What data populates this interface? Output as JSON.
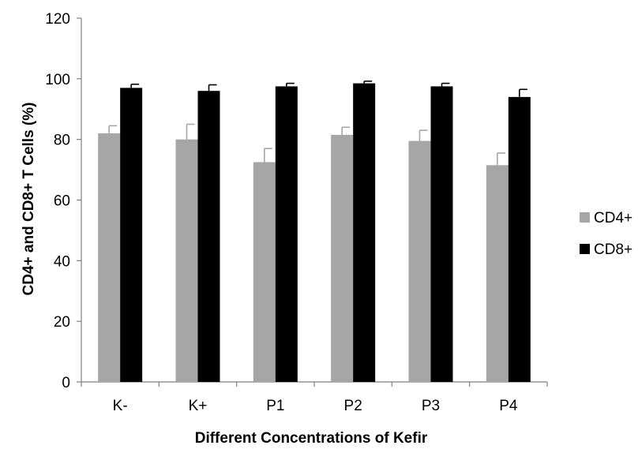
{
  "chart_data": {
    "type": "bar",
    "title": "",
    "xlabel": "Different Concentrations of Kefir",
    "ylabel": "CD4+ and CD8+ T Cells (%)",
    "ylim": [
      0,
      120
    ],
    "yticks": [
      "0",
      "20",
      "40",
      "60",
      "80",
      "100",
      "120"
    ],
    "categories": [
      "K-",
      "K+",
      "P1",
      "P2",
      "P3",
      "P4"
    ],
    "series": [
      {
        "name": "CD4+",
        "color": "#a6a6a6",
        "values": [
          82,
          80,
          72.5,
          81.5,
          79.5,
          71.5
        ],
        "errors": [
          2.5,
          5,
          4.5,
          2.5,
          3.5,
          4
        ]
      },
      {
        "name": "CD8+",
        "color": "#000000",
        "values": [
          97,
          96,
          97.5,
          98.5,
          97.5,
          94
        ],
        "errors": [
          1.2,
          2,
          1,
          0.7,
          1,
          2.5
        ]
      }
    ],
    "grid": false,
    "legend_position": "right"
  }
}
